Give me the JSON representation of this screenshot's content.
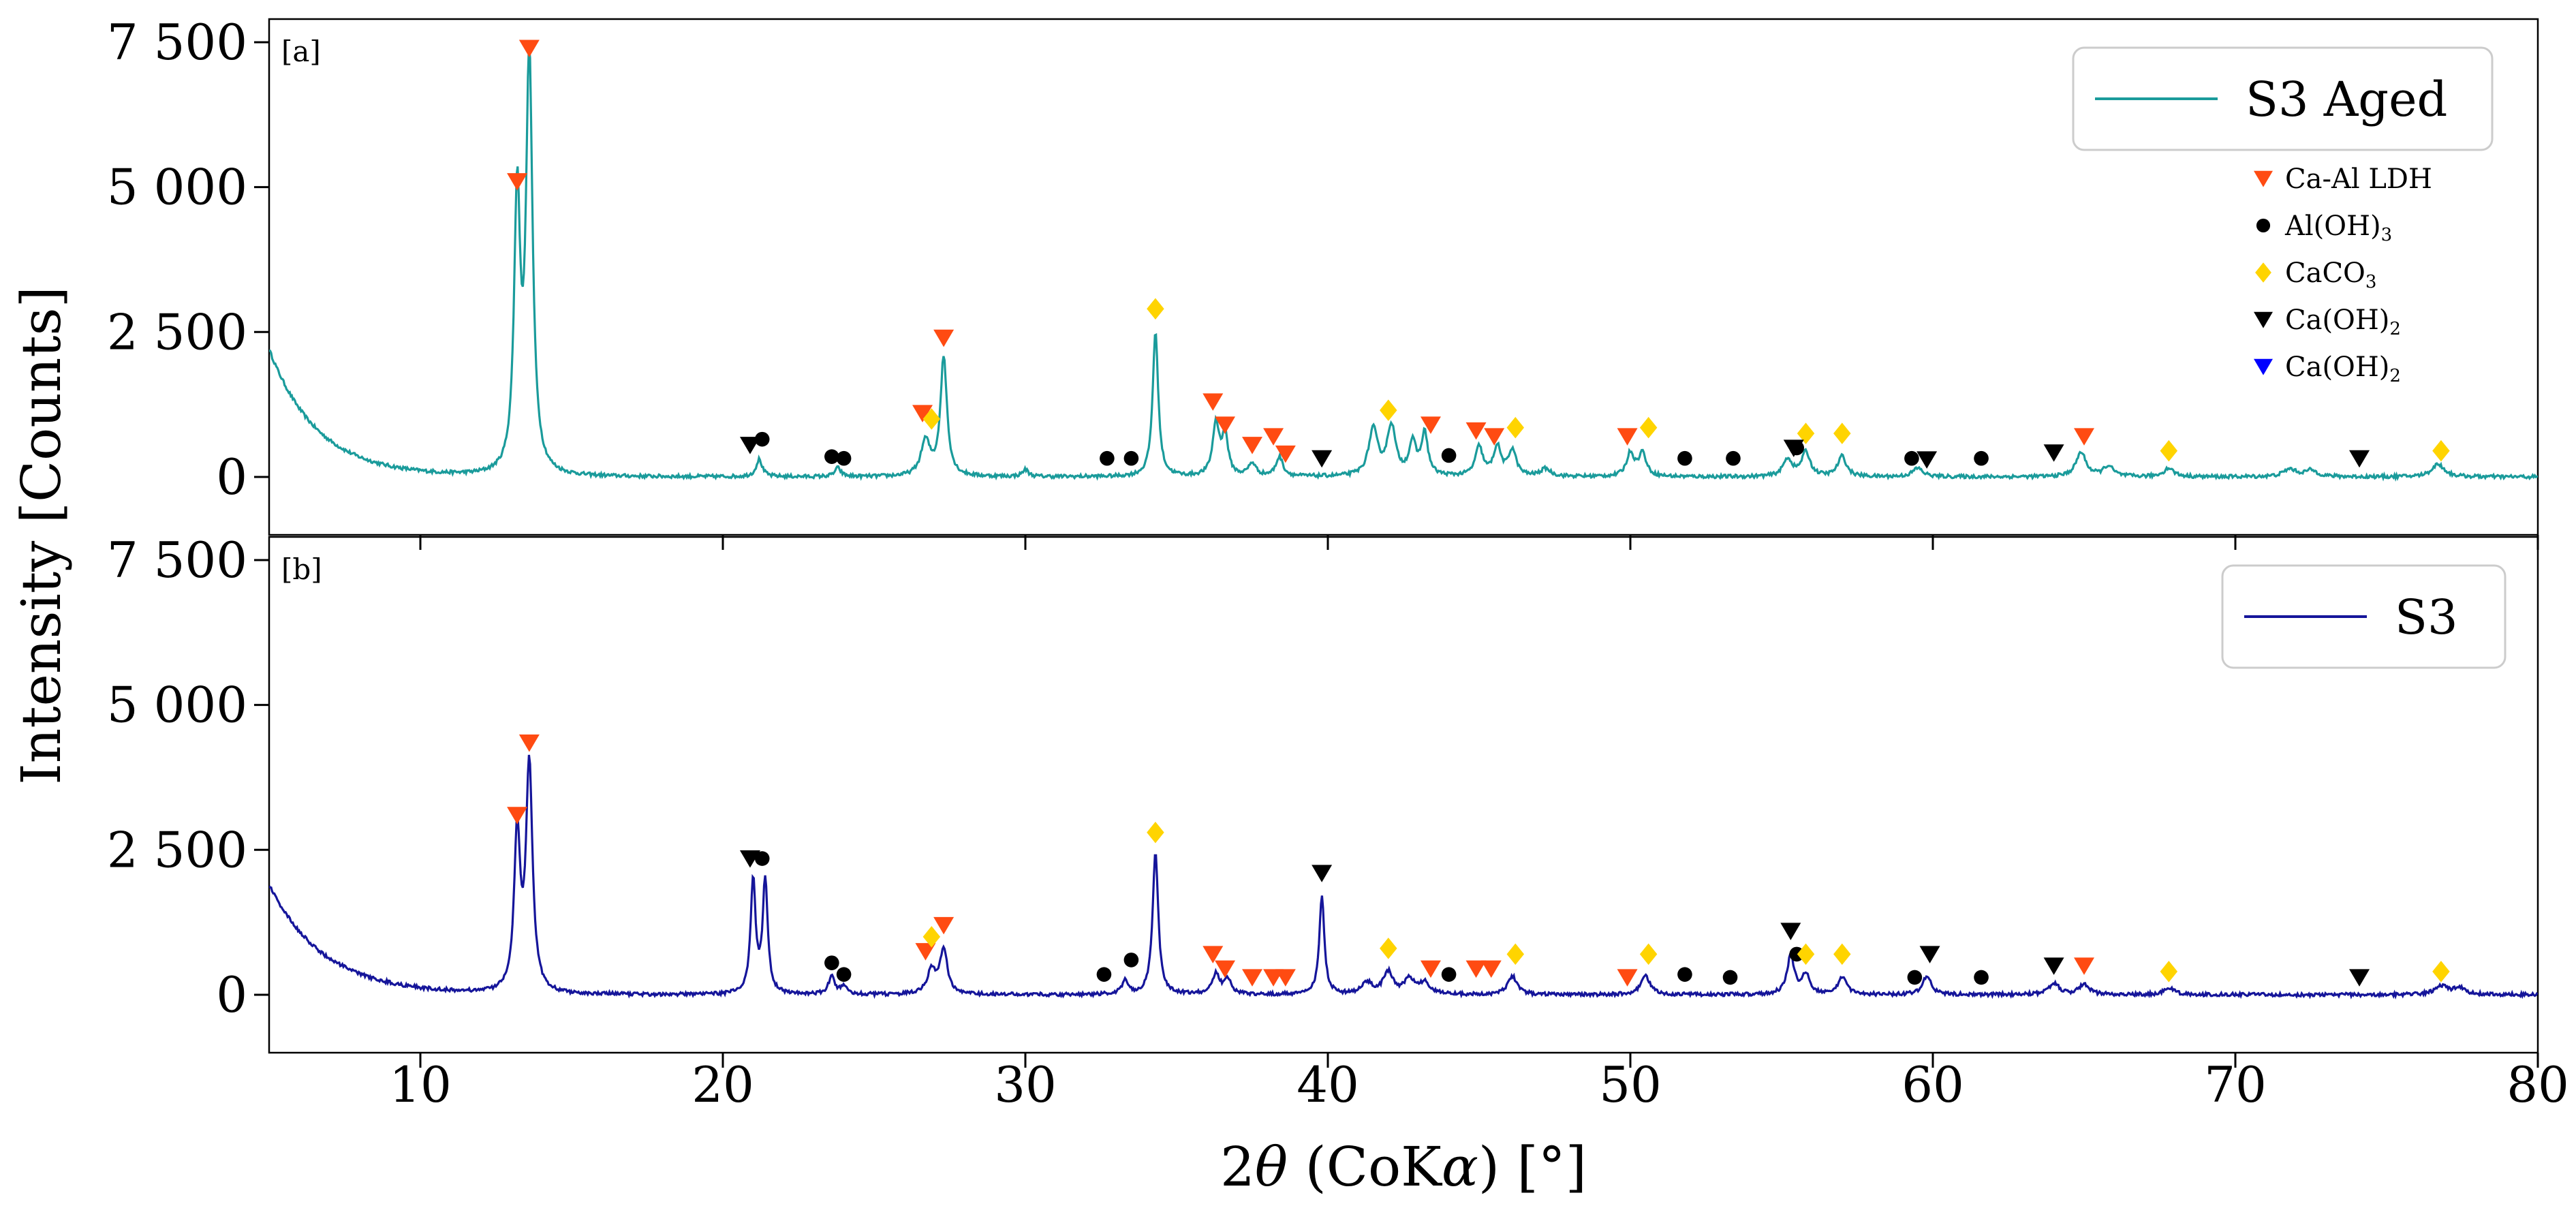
{
  "chart_data": {
    "type": "line",
    "xlabel_parts": [
      "2",
      "θ",
      " (CoK",
      "α",
      ") [°]"
    ],
    "ylabel": "Intensity [Counts]",
    "xlim": [
      5,
      80
    ],
    "ylim": [
      -1000,
      7900
    ],
    "x_ticks": [
      10,
      20,
      30,
      40,
      50,
      60,
      70,
      80
    ],
    "y_ticks": [
      {
        "value": 0,
        "label": "0"
      },
      {
        "value": 2500,
        "label": "2 500"
      },
      {
        "value": 5000,
        "label": "5 000"
      },
      {
        "value": 7500,
        "label": "7 500"
      }
    ],
    "phase_legend": [
      {
        "key": "ldh",
        "main": "Ca-Al LDH",
        "sub": "",
        "marker": "triangle-down",
        "color": "#ff4b12"
      },
      {
        "key": "aloh",
        "main": "Al(OH)",
        "sub": "3",
        "marker": "circle",
        "color": "#000000"
      },
      {
        "key": "caco3",
        "main": "CaCO",
        "sub": "3",
        "marker": "diamond",
        "color": "#ffd400"
      },
      {
        "key": "caoh",
        "main": "Ca(OH)",
        "sub": "2",
        "marker": "triangle-down",
        "color": "#000000"
      },
      {
        "key": "caoh_blue",
        "main": "Ca(OH)",
        "sub": "2",
        "marker": "triangle-down",
        "color": "#0000ff"
      }
    ],
    "panels": [
      {
        "tag": "[a]",
        "series_name": "S3 Aged",
        "color": "#1a9b9b",
        "background": {
          "decay_amp": 2200,
          "decay_width": 1.6,
          "base": 0
        },
        "peaks": [
          [
            13.2,
            4700,
            0.12
          ],
          [
            13.6,
            7100,
            0.13
          ],
          [
            21.2,
            300,
            0.12
          ],
          [
            23.8,
            150,
            0.12
          ],
          [
            26.7,
            600,
            0.18
          ],
          [
            27.3,
            2050,
            0.13
          ],
          [
            30.0,
            120,
            0.12
          ],
          [
            34.3,
            2500,
            0.11
          ],
          [
            36.3,
            900,
            0.13
          ],
          [
            36.6,
            700,
            0.12
          ],
          [
            37.5,
            220,
            0.15
          ],
          [
            38.4,
            330,
            0.14
          ],
          [
            41.5,
            800,
            0.18
          ],
          [
            42.1,
            850,
            0.17
          ],
          [
            42.8,
            550,
            0.14
          ],
          [
            43.2,
            720,
            0.13
          ],
          [
            45.0,
            500,
            0.15
          ],
          [
            45.6,
            500,
            0.15
          ],
          [
            46.1,
            450,
            0.15
          ],
          [
            47.2,
            130,
            0.2
          ],
          [
            50.0,
            400,
            0.15
          ],
          [
            50.4,
            400,
            0.15
          ],
          [
            55.2,
            300,
            0.18
          ],
          [
            55.8,
            420,
            0.17
          ],
          [
            57.0,
            350,
            0.17
          ],
          [
            59.5,
            150,
            0.2
          ],
          [
            64.9,
            420,
            0.2
          ],
          [
            65.8,
            180,
            0.2
          ],
          [
            67.8,
            150,
            0.2
          ],
          [
            71.8,
            130,
            0.25
          ],
          [
            72.5,
            110,
            0.25
          ],
          [
            76.7,
            220,
            0.25
          ]
        ],
        "markers": {
          "ldh": [
            [
              13.2,
              5100
            ],
            [
              13.6,
              7400
            ],
            [
              26.6,
              1100
            ],
            [
              27.3,
              2400
            ],
            [
              36.2,
              1300
            ],
            [
              36.6,
              900
            ],
            [
              37.5,
              550
            ],
            [
              38.2,
              700
            ],
            [
              38.6,
              400
            ],
            [
              43.4,
              900
            ],
            [
              44.9,
              800
            ],
            [
              45.5,
              700
            ],
            [
              49.9,
              700
            ],
            [
              65.0,
              700
            ]
          ],
          "aloh": [
            [
              21.3,
              650
            ],
            [
              23.6,
              350
            ],
            [
              24.0,
              320
            ],
            [
              32.7,
              320
            ],
            [
              33.5,
              320
            ],
            [
              44.0,
              370
            ],
            [
              51.8,
              320
            ],
            [
              53.4,
              320
            ],
            [
              55.5,
              500
            ],
            [
              59.3,
              320
            ],
            [
              61.6,
              320
            ]
          ],
          "caco3": [
            [
              26.9,
              1000
            ],
            [
              34.3,
              2900
            ],
            [
              42.0,
              1150
            ],
            [
              46.2,
              850
            ],
            [
              50.6,
              850
            ],
            [
              55.8,
              750
            ],
            [
              57.0,
              750
            ],
            [
              67.8,
              450
            ],
            [
              76.8,
              450
            ]
          ],
          "caoh": [
            [
              20.9,
              550
            ],
            [
              39.8,
              320
            ],
            [
              55.4,
              500
            ],
            [
              59.8,
              300
            ],
            [
              64.0,
              420
            ],
            [
              74.1,
              320
            ]
          ]
        }
      },
      {
        "tag": "[b]",
        "series_name": "S3",
        "color": "#15159a",
        "background": {
          "decay_amp": 1900,
          "decay_width": 1.8,
          "base": 0
        },
        "peaks": [
          [
            13.2,
            2700,
            0.12
          ],
          [
            13.6,
            3900,
            0.13
          ],
          [
            21.0,
            1950,
            0.1
          ],
          [
            21.4,
            1950,
            0.1
          ],
          [
            23.6,
            320,
            0.12
          ],
          [
            24.0,
            150,
            0.12
          ],
          [
            26.9,
            400,
            0.18
          ],
          [
            27.3,
            780,
            0.14
          ],
          [
            33.3,
            250,
            0.12
          ],
          [
            34.3,
            2450,
            0.11
          ],
          [
            36.3,
            350,
            0.15
          ],
          [
            36.7,
            250,
            0.14
          ],
          [
            39.8,
            1700,
            0.1
          ],
          [
            41.3,
            200,
            0.2
          ],
          [
            42.0,
            380,
            0.2
          ],
          [
            42.7,
            250,
            0.2
          ],
          [
            43.2,
            200,
            0.2
          ],
          [
            46.1,
            320,
            0.18
          ],
          [
            50.5,
            320,
            0.18
          ],
          [
            55.3,
            650,
            0.15
          ],
          [
            55.8,
            350,
            0.15
          ],
          [
            57.0,
            300,
            0.17
          ],
          [
            59.8,
            320,
            0.17
          ],
          [
            64.0,
            200,
            0.2
          ],
          [
            65.0,
            180,
            0.2
          ],
          [
            67.8,
            120,
            0.2
          ],
          [
            76.8,
            150,
            0.25
          ],
          [
            77.4,
            110,
            0.25
          ]
        ],
        "markers": {
          "ldh": [
            [
              13.2,
              3100
            ],
            [
              13.6,
              4350
            ],
            [
              26.7,
              750
            ],
            [
              27.3,
              1200
            ],
            [
              36.2,
              700
            ],
            [
              36.6,
              450
            ],
            [
              37.5,
              300
            ],
            [
              38.2,
              300
            ],
            [
              38.6,
              300
            ],
            [
              43.4,
              450
            ],
            [
              44.9,
              450
            ],
            [
              45.4,
              450
            ],
            [
              49.9,
              300
            ],
            [
              65.0,
              500
            ]
          ],
          "aloh": [
            [
              21.3,
              2350
            ],
            [
              23.6,
              550
            ],
            [
              24.0,
              350
            ],
            [
              32.6,
              350
            ],
            [
              33.5,
              600
            ],
            [
              44.0,
              350
            ],
            [
              51.8,
              350
            ],
            [
              53.3,
              300
            ],
            [
              55.5,
              700
            ],
            [
              59.4,
              300
            ],
            [
              61.6,
              300
            ]
          ],
          "caco3": [
            [
              26.9,
              1000
            ],
            [
              34.3,
              2800
            ],
            [
              42.0,
              800
            ],
            [
              46.2,
              700
            ],
            [
              50.6,
              700
            ],
            [
              55.8,
              700
            ],
            [
              57.0,
              700
            ],
            [
              67.8,
              400
            ],
            [
              76.8,
              400
            ]
          ],
          "caoh": [
            [
              20.9,
              2350
            ],
            [
              39.8,
              2100
            ],
            [
              55.3,
              1100
            ],
            [
              59.9,
              700
            ],
            [
              64.0,
              500
            ],
            [
              74.1,
              300
            ]
          ]
        }
      }
    ]
  }
}
